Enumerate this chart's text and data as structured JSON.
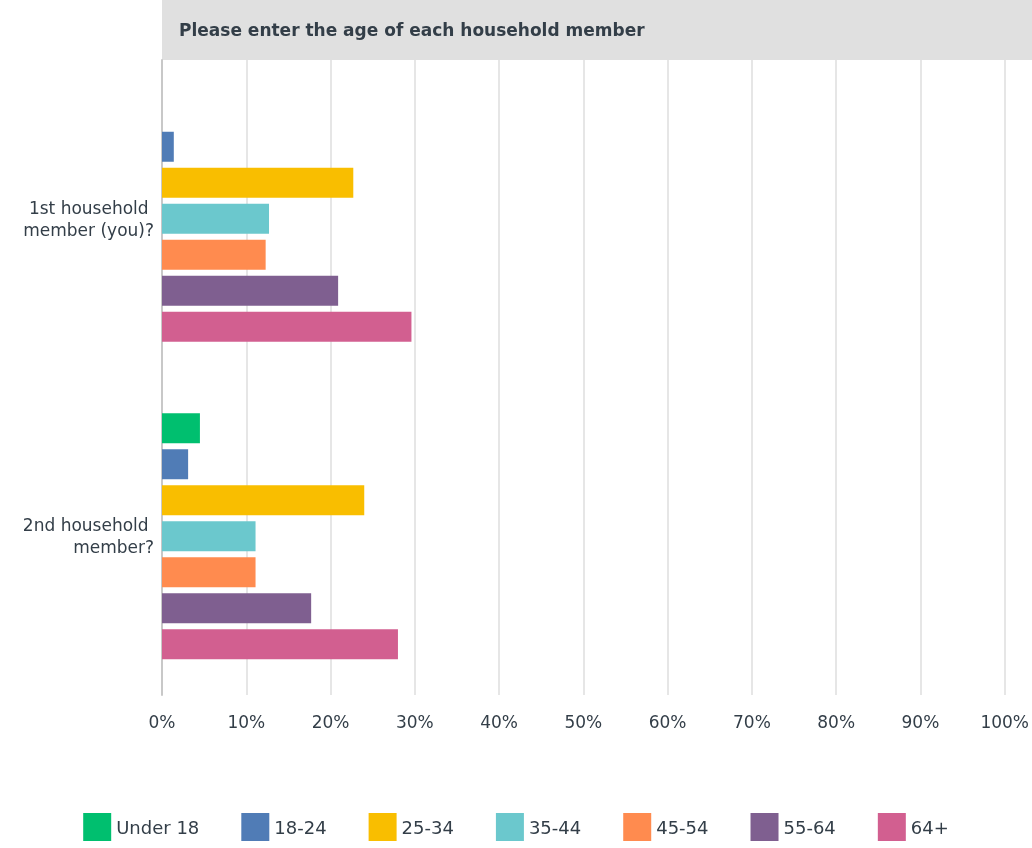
{
  "chart_data": {
    "type": "bar",
    "orientation": "horizontal",
    "title": "Please enter the age of each household member",
    "categories": [
      "1st household member (you)?",
      "2nd household member?"
    ],
    "series": [
      {
        "name": "Under 18",
        "color": "#00bf6f",
        "values": [
          0,
          4.5
        ]
      },
      {
        "name": "18-24",
        "color": "#507cb6",
        "values": [
          1.4,
          3.1
        ]
      },
      {
        "name": "25-34",
        "color": "#f9be00",
        "values": [
          22.7,
          24.0
        ]
      },
      {
        "name": "35-44",
        "color": "#6bc8cd",
        "values": [
          12.7,
          11.1
        ]
      },
      {
        "name": "45-54",
        "color": "#ff8b4f",
        "values": [
          12.3,
          11.1
        ]
      },
      {
        "name": "55-64",
        "color": "#7f5f90",
        "values": [
          20.9,
          17.7
        ]
      },
      {
        "name": "64+",
        "color": "#d25f90",
        "values": [
          29.6,
          28.0
        ]
      }
    ],
    "xlim": [
      0,
      100
    ],
    "xticks": [
      {
        "value": 0,
        "label": "0%"
      },
      {
        "value": 10,
        "label": "10%"
      },
      {
        "value": 20,
        "label": "20%"
      },
      {
        "value": 30,
        "label": "30%"
      },
      {
        "value": 40,
        "label": "40%"
      },
      {
        "value": 50,
        "label": "50%"
      },
      {
        "value": 60,
        "label": "60%"
      },
      {
        "value": 70,
        "label": "70%"
      },
      {
        "value": 80,
        "label": "80%"
      },
      {
        "value": 90,
        "label": "90%"
      },
      {
        "value": 100,
        "label": "100%"
      }
    ],
    "grid": "x",
    "legend": "bottom"
  }
}
